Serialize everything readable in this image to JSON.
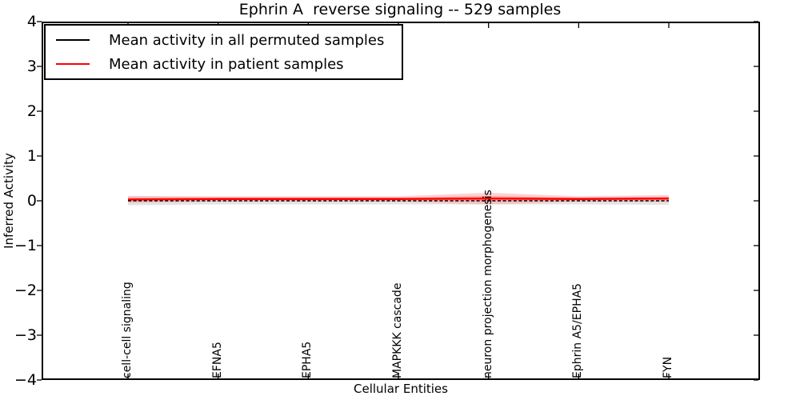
{
  "title": "Ephrin A  reverse signaling -- 529 samples",
  "axes": {
    "xlabel": "Cellular Entities",
    "ylabel": "Inferred Activity",
    "ytick_labels": [
      "4",
      "3",
      "2",
      "1",
      "0",
      "−1",
      "−2",
      "−3",
      "−4"
    ]
  },
  "legend": {
    "entries": [
      {
        "label": "Mean activity in all permuted samples",
        "color": "#000000"
      },
      {
        "label": "Mean activity in patient samples",
        "color": "#ff0000"
      }
    ]
  },
  "chart_data": {
    "type": "line",
    "title": "Ephrin A  reverse signaling -- 529 samples",
    "xlabel": "Cellular Entities",
    "ylabel": "Inferred Activity",
    "ylim": [
      -4,
      4
    ],
    "yticks": [
      4,
      3,
      2,
      1,
      0,
      -1,
      -2,
      -3,
      -4
    ],
    "grid": false,
    "legend_position": "upper left",
    "categories": [
      "cell-cell signaling",
      "EFNA5",
      "EPHA5",
      "MAPKKK cascade",
      "neuron projection morphogenesis",
      "Ephrin A5/EPHA5",
      "FYN"
    ],
    "series": [
      {
        "name": "Mean activity in all permuted samples",
        "color": "#000000",
        "line_style": "dashed",
        "values": [
          0.0,
          0.0,
          0.0,
          0.0,
          0.0,
          0.0,
          0.0
        ],
        "band_halfwidth": [
          0.1,
          0.08,
          0.08,
          0.08,
          0.08,
          0.08,
          0.09
        ],
        "band_color": "#e3e3e3"
      },
      {
        "name": "Mean activity in patient samples",
        "color": "#ff0000",
        "line_style": "solid",
        "values": [
          0.03,
          0.04,
          0.04,
          0.04,
          0.05,
          0.04,
          0.05
        ],
        "band_halfwidth": [
          0.08,
          0.06,
          0.06,
          0.06,
          0.13,
          0.06,
          0.08
        ],
        "band_color": "#ff9999"
      }
    ]
  }
}
